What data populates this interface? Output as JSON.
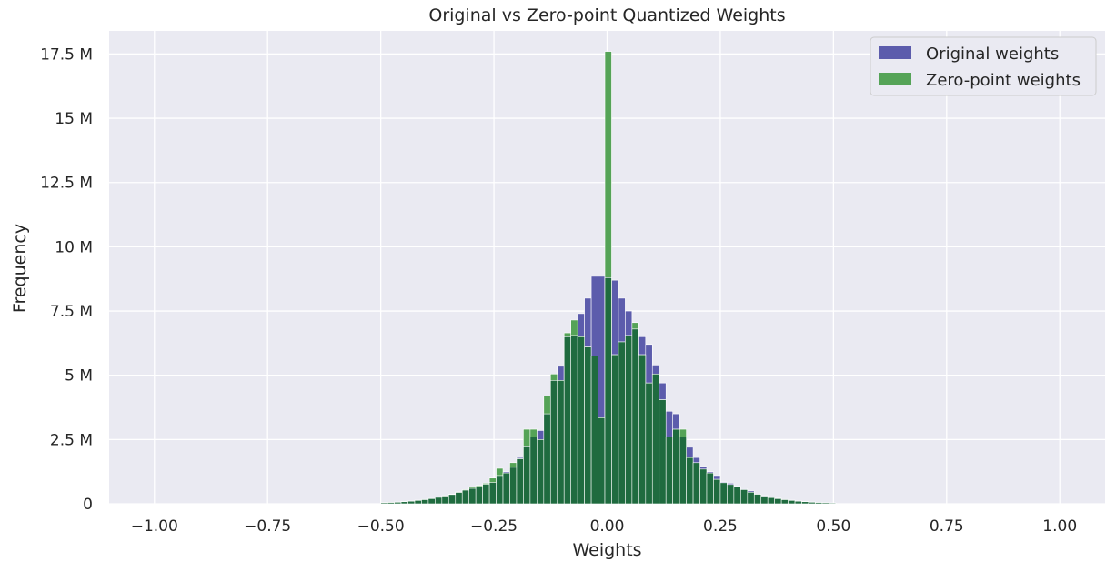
{
  "chart_data": {
    "type": "bar",
    "title": "Original vs Zero-point Quantized Weights",
    "xlabel": "Weights",
    "ylabel": "Frequency",
    "xlim": [
      -1.1,
      1.1
    ],
    "ylim": [
      0,
      18.4
    ],
    "x_ticks": [
      -1.0,
      -0.75,
      -0.5,
      -0.25,
      0.0,
      0.25,
      0.5,
      0.75,
      1.0
    ],
    "x_tick_labels": [
      "−1.00",
      "−0.75",
      "−0.50",
      "−0.25",
      "0.00",
      "0.25",
      "0.50",
      "0.75",
      "1.00"
    ],
    "y_ticks": [
      0,
      2.5,
      5,
      7.5,
      10,
      12.5,
      15,
      17.5
    ],
    "y_tick_labels": [
      "0",
      "2.5 M",
      "5 M",
      "7.5 M",
      "10 M",
      "12.5 M",
      "15 M",
      "17.5 M"
    ],
    "y_unit": "M",
    "bin_width": 0.015,
    "grid": true,
    "legend_position": "top-right",
    "series": [
      {
        "name": "Original weights",
        "color": "#5c5cac",
        "bins": [
          [
            -0.5,
            0.04
          ],
          [
            -0.485,
            0.05
          ],
          [
            -0.47,
            0.06
          ],
          [
            -0.455,
            0.08
          ],
          [
            -0.44,
            0.1
          ],
          [
            -0.425,
            0.13
          ],
          [
            -0.41,
            0.16
          ],
          [
            -0.395,
            0.2
          ],
          [
            -0.38,
            0.25
          ],
          [
            -0.365,
            0.3
          ],
          [
            -0.35,
            0.36
          ],
          [
            -0.335,
            0.44
          ],
          [
            -0.32,
            0.53
          ],
          [
            -0.305,
            0.6
          ],
          [
            -0.29,
            0.68
          ],
          [
            -0.275,
            0.76
          ],
          [
            -0.26,
            0.83
          ],
          [
            -0.245,
            1.1
          ],
          [
            -0.23,
            1.25
          ],
          [
            -0.215,
            1.42
          ],
          [
            -0.2,
            1.8
          ],
          [
            -0.185,
            2.25
          ],
          [
            -0.17,
            2.6
          ],
          [
            -0.155,
            2.85
          ],
          [
            -0.14,
            3.5
          ],
          [
            -0.125,
            4.8
          ],
          [
            -0.11,
            5.35
          ],
          [
            -0.095,
            6.5
          ],
          [
            -0.08,
            6.55
          ],
          [
            -0.065,
            7.4
          ],
          [
            -0.05,
            8.0
          ],
          [
            -0.035,
            8.85
          ],
          [
            -0.02,
            8.85
          ],
          [
            -0.005,
            8.8
          ],
          [
            0.01,
            8.7
          ],
          [
            0.025,
            8.0
          ],
          [
            0.04,
            7.5
          ],
          [
            0.055,
            6.8
          ],
          [
            0.07,
            6.5
          ],
          [
            0.085,
            6.2
          ],
          [
            0.1,
            5.4
          ],
          [
            0.115,
            4.7
          ],
          [
            0.13,
            3.6
          ],
          [
            0.145,
            3.5
          ],
          [
            0.16,
            2.6
          ],
          [
            0.175,
            2.2
          ],
          [
            0.19,
            1.8
          ],
          [
            0.205,
            1.45
          ],
          [
            0.22,
            1.25
          ],
          [
            0.235,
            1.1
          ],
          [
            0.25,
            0.85
          ],
          [
            0.265,
            0.8
          ],
          [
            0.28,
            0.68
          ],
          [
            0.295,
            0.58
          ],
          [
            0.31,
            0.5
          ],
          [
            0.325,
            0.38
          ],
          [
            0.34,
            0.32
          ],
          [
            0.355,
            0.26
          ],
          [
            0.37,
            0.22
          ],
          [
            0.385,
            0.17
          ],
          [
            0.4,
            0.14
          ],
          [
            0.415,
            0.11
          ],
          [
            0.43,
            0.09
          ],
          [
            0.445,
            0.07
          ],
          [
            0.46,
            0.05
          ],
          [
            0.475,
            0.04
          ],
          [
            0.49,
            0.03
          ]
        ]
      },
      {
        "name": "Zero-point weights",
        "color": "#55a357",
        "bins": [
          [
            -0.5,
            0.05
          ],
          [
            -0.485,
            0.06
          ],
          [
            -0.47,
            0.07
          ],
          [
            -0.455,
            0.09
          ],
          [
            -0.44,
            0.11
          ],
          [
            -0.425,
            0.14
          ],
          [
            -0.41,
            0.17
          ],
          [
            -0.395,
            0.21
          ],
          [
            -0.38,
            0.26
          ],
          [
            -0.365,
            0.32
          ],
          [
            -0.35,
            0.38
          ],
          [
            -0.335,
            0.46
          ],
          [
            -0.32,
            0.55
          ],
          [
            -0.305,
            0.65
          ],
          [
            -0.29,
            0.72
          ],
          [
            -0.275,
            0.8
          ],
          [
            -0.26,
            1.0
          ],
          [
            -0.245,
            1.38
          ],
          [
            -0.23,
            1.2
          ],
          [
            -0.215,
            1.6
          ],
          [
            -0.2,
            1.75
          ],
          [
            -0.185,
            2.9
          ],
          [
            -0.17,
            2.9
          ],
          [
            -0.155,
            2.5
          ],
          [
            -0.14,
            4.2
          ],
          [
            -0.125,
            5.05
          ],
          [
            -0.11,
            4.8
          ],
          [
            -0.095,
            6.65
          ],
          [
            -0.08,
            7.15
          ],
          [
            -0.065,
            6.5
          ],
          [
            -0.05,
            6.1
          ],
          [
            -0.035,
            5.75
          ],
          [
            -0.02,
            3.35
          ],
          [
            -0.005,
            17.6
          ],
          [
            0.01,
            5.8
          ],
          [
            0.025,
            6.3
          ],
          [
            0.04,
            6.55
          ],
          [
            0.055,
            7.05
          ],
          [
            0.07,
            5.8
          ],
          [
            0.085,
            4.7
          ],
          [
            0.1,
            5.05
          ],
          [
            0.115,
            4.05
          ],
          [
            0.13,
            2.6
          ],
          [
            0.145,
            2.9
          ],
          [
            0.16,
            2.9
          ],
          [
            0.175,
            1.8
          ],
          [
            0.19,
            1.6
          ],
          [
            0.205,
            1.35
          ],
          [
            0.22,
            1.2
          ],
          [
            0.235,
            0.95
          ],
          [
            0.25,
            0.82
          ],
          [
            0.265,
            0.75
          ],
          [
            0.28,
            0.65
          ],
          [
            0.295,
            0.55
          ],
          [
            0.31,
            0.45
          ],
          [
            0.325,
            0.37
          ],
          [
            0.34,
            0.3
          ],
          [
            0.355,
            0.24
          ],
          [
            0.37,
            0.2
          ],
          [
            0.385,
            0.16
          ],
          [
            0.4,
            0.13
          ],
          [
            0.415,
            0.1
          ],
          [
            0.43,
            0.08
          ],
          [
            0.445,
            0.06
          ],
          [
            0.46,
            0.05
          ],
          [
            0.475,
            0.04
          ],
          [
            0.49,
            0.03
          ]
        ]
      }
    ],
    "overlap_color": "#1f6b3f"
  }
}
